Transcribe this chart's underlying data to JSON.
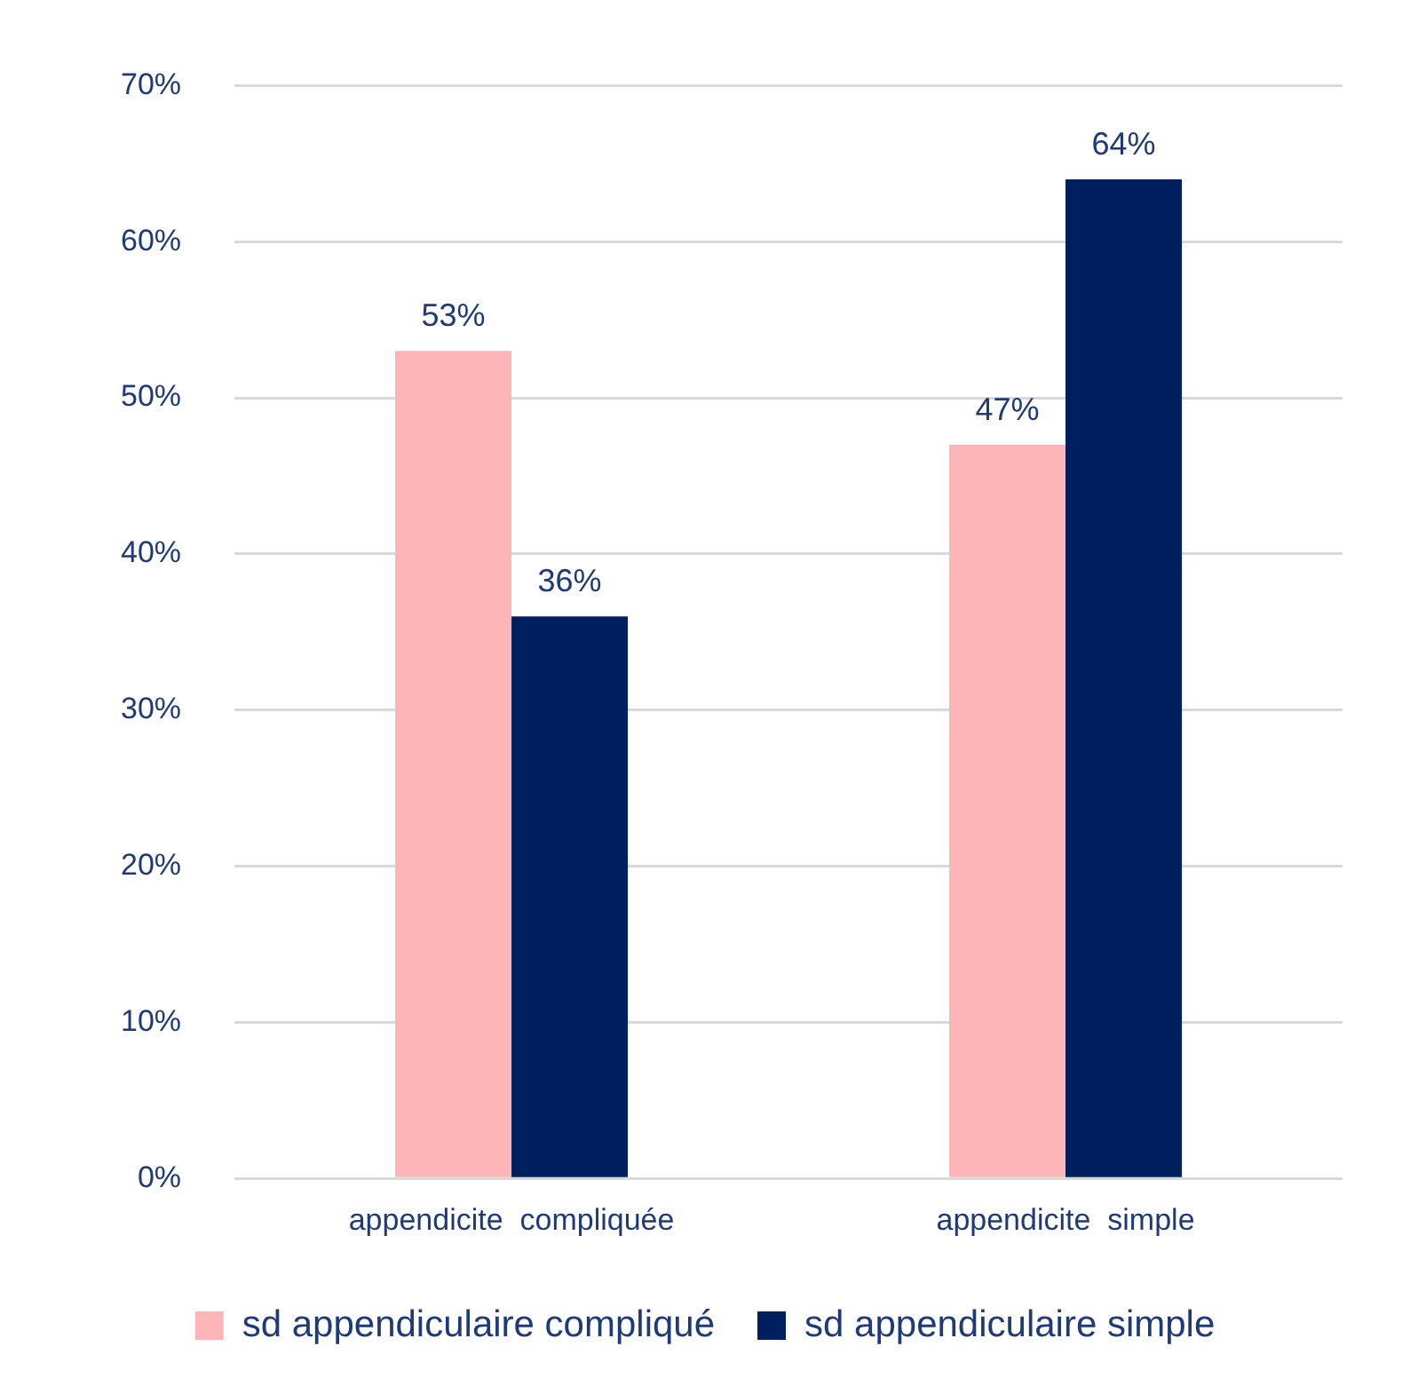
{
  "chart_data": {
    "type": "bar",
    "categories": [
      "appendicite  compliquée",
      "appendicite  simple"
    ],
    "series": [
      {
        "name": "sd appendiculaire compliqué",
        "color": "#fdb5b8",
        "values": [
          53,
          47
        ],
        "value_labels": [
          "53%",
          "47%"
        ]
      },
      {
        "name": "sd appendiculaire simple",
        "color": "#001f5f",
        "values": [
          36,
          64
        ],
        "value_labels": [
          "36%",
          "64%"
        ]
      }
    ],
    "ylim": [
      0,
      70
    ],
    "yticks": [
      {
        "value": 0,
        "label": "0%"
      },
      {
        "value": 10,
        "label": "10%"
      },
      {
        "value": 20,
        "label": "20%"
      },
      {
        "value": 30,
        "label": "30%"
      },
      {
        "value": 40,
        "label": "40%"
      },
      {
        "value": 50,
        "label": "50%"
      },
      {
        "value": 60,
        "label": "60%"
      },
      {
        "value": 70,
        "label": "70%"
      }
    ],
    "grid": "y",
    "legend": "bottom"
  }
}
